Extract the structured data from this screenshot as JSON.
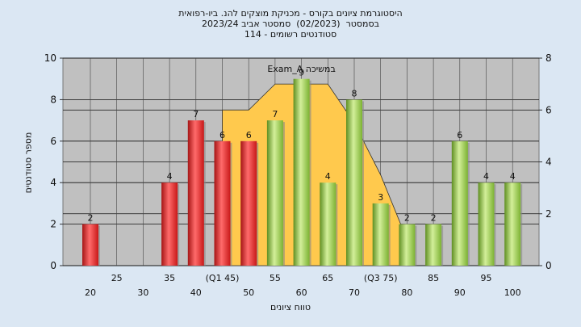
{
  "chart_data": {
    "type": "bar",
    "title_lines": [
      "היסטוגרמת ציונים בקורס - מכניקת מוצקים להנ. ביו-רפואית",
      "בסמסטר  (02/2023)  סמסטר אביב 2023/24",
      "סטודנטים רשומים - 114"
    ],
    "xlabel": "טווח ציונים",
    "ylabel": "מספר סטודנטים",
    "ylim": [
      0,
      10
    ],
    "ylim_right": [
      0,
      8
    ],
    "yticks": [
      0,
      2,
      4,
      6,
      8,
      10
    ],
    "yticks_right": [
      0,
      2,
      4,
      6,
      8
    ],
    "grid": true,
    "categories": [
      20,
      25,
      30,
      35,
      40,
      45,
      50,
      55,
      60,
      65,
      70,
      75,
      80,
      85,
      90,
      95,
      100
    ],
    "tick_labels_row1": [
      "20",
      "30",
      "40",
      "50",
      "60",
      "70",
      "80",
      "90",
      "100"
    ],
    "tick_labels_row2": [
      "25",
      "35",
      "(Q1 45)",
      "55",
      "65",
      "(Q3 75)",
      "85",
      "95"
    ],
    "values": [
      2,
      0,
      0,
      4,
      7,
      6,
      6,
      7,
      9,
      4,
      8,
      3,
      2,
      2,
      6,
      4,
      4
    ],
    "value_labels": [
      "2",
      "",
      "",
      "4",
      "7",
      "6",
      "6",
      "7",
      "9",
      "4",
      "8",
      "3",
      "2",
      "2",
      "6",
      "4",
      "4"
    ],
    "bar_colors": [
      "red",
      "none",
      "none",
      "red",
      "red",
      "red",
      "red",
      "green",
      "green",
      "green",
      "green",
      "green",
      "green",
      "green",
      "green",
      "green",
      "green"
    ],
    "colors": {
      "red": "#e02020",
      "green": "#8cc63f",
      "area": "#ffc94d",
      "plot_bg": "#c0c0c0"
    },
    "area_series": {
      "name": "Exam_A במשיכה",
      "x": [
        45,
        50,
        55,
        65,
        70,
        75,
        80
      ],
      "y": [
        6,
        6,
        7,
        7,
        5.5,
        3.5,
        1
      ]
    },
    "annotation": "Exam_A במשיכה"
  }
}
